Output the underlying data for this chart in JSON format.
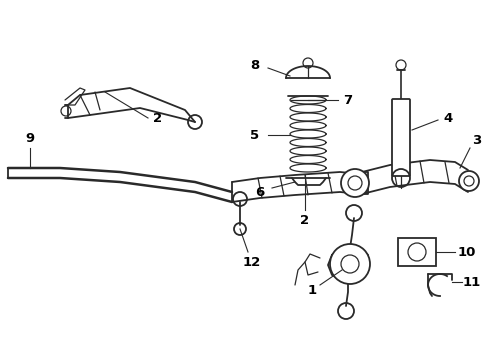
{
  "bg_color": "#ffffff",
  "line_color": "#2a2a2a",
  "label_color": "#000000",
  "figw": 4.9,
  "figh": 3.6,
  "dpi": 100
}
